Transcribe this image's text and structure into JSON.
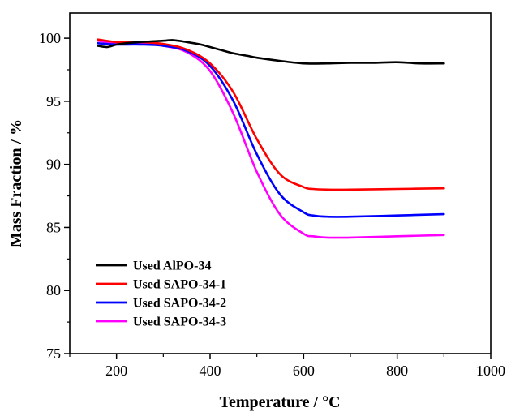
{
  "chart_data": {
    "type": "line",
    "xlabel": "Temperature / °C",
    "ylabel": "Mass Fraction / %",
    "xlim": [
      100,
      1000
    ],
    "ylim": [
      75,
      102
    ],
    "xticks": [
      200,
      400,
      600,
      800,
      1000
    ],
    "yticks": [
      75,
      80,
      85,
      90,
      95,
      100
    ],
    "legend_position": "bottom-left",
    "grid": false,
    "series": [
      {
        "name": "Used AlPO-34",
        "color": "#000000",
        "x": [
          160,
          180,
          200,
          220,
          250,
          300,
          320,
          350,
          380,
          400,
          420,
          450,
          480,
          500,
          550,
          600,
          650,
          700,
          750,
          800,
          850,
          900
        ],
        "values": [
          99.4,
          99.3,
          99.5,
          99.6,
          99.7,
          99.8,
          99.85,
          99.7,
          99.5,
          99.3,
          99.1,
          98.8,
          98.6,
          98.45,
          98.2,
          98.0,
          98.0,
          98.05,
          98.05,
          98.1,
          98.0,
          98.0
        ]
      },
      {
        "name": "Used SAPO-34-1",
        "color": "#ff0000",
        "x": [
          160,
          200,
          250,
          300,
          350,
          400,
          450,
          500,
          550,
          600,
          620,
          650,
          700,
          800,
          900
        ],
        "values": [
          99.9,
          99.7,
          99.7,
          99.55,
          99.1,
          98.0,
          95.7,
          92.0,
          89.2,
          88.2,
          88.05,
          88.0,
          88.0,
          88.05,
          88.1
        ]
      },
      {
        "name": "Used SAPO-34-2",
        "color": "#0000ff",
        "x": [
          160,
          200,
          250,
          300,
          350,
          400,
          450,
          500,
          550,
          600,
          620,
          650,
          700,
          800,
          900
        ],
        "values": [
          99.6,
          99.5,
          99.5,
          99.4,
          99.0,
          97.8,
          95.0,
          90.8,
          87.6,
          86.2,
          85.95,
          85.85,
          85.85,
          85.95,
          86.05
        ]
      },
      {
        "name": "Used SAPO-34-3",
        "color": "#ff00ff",
        "x": [
          160,
          200,
          250,
          300,
          350,
          400,
          450,
          500,
          550,
          600,
          620,
          650,
          700,
          800,
          900
        ],
        "values": [
          99.8,
          99.6,
          99.6,
          99.4,
          98.9,
          97.4,
          94.0,
          89.4,
          86.0,
          84.5,
          84.3,
          84.2,
          84.2,
          84.3,
          84.4
        ]
      }
    ]
  }
}
